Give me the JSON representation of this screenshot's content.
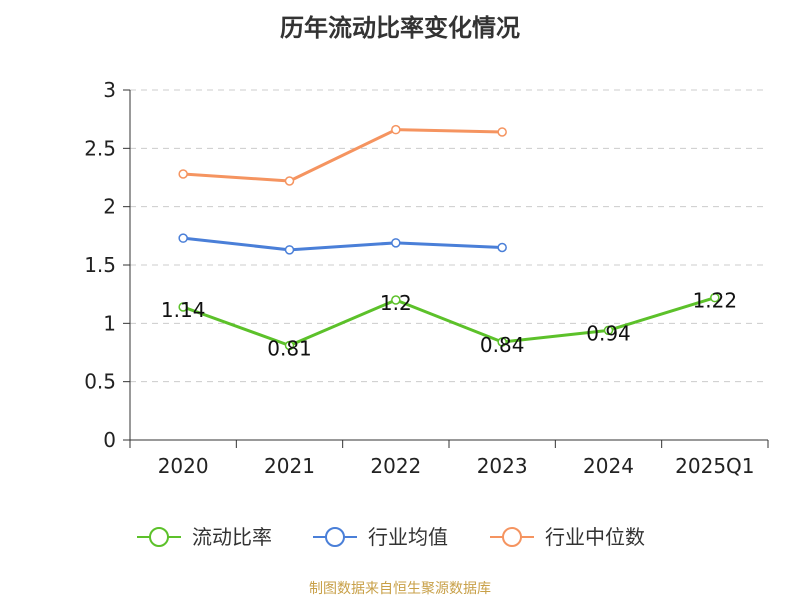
{
  "chart_data": {
    "type": "line",
    "title": "历年流动比率变化情况",
    "categories": [
      "2020",
      "2021",
      "2022",
      "2023",
      "2024",
      "2025Q1"
    ],
    "ylim": [
      0,
      3
    ],
    "yticks": [
      0,
      0.5,
      1,
      1.5,
      2,
      2.5,
      3
    ],
    "grid": true,
    "legend_position": "bottom",
    "series": [
      {
        "name": "流动比率",
        "values": [
          1.14,
          0.81,
          1.2,
          0.84,
          0.94,
          1.22
        ],
        "color": "#5cc12a",
        "labels": [
          "1.14",
          "0.81",
          "1.2",
          "0.84",
          "0.94",
          "1.22"
        ]
      },
      {
        "name": "行业均值",
        "values": [
          1.73,
          1.63,
          1.69,
          1.65,
          null,
          null
        ],
        "color": "#4a7fd8"
      },
      {
        "name": "行业中位数",
        "values": [
          2.28,
          2.22,
          2.66,
          2.64,
          null,
          null
        ],
        "color": "#f59460"
      }
    ],
    "source": "制图数据来自恒生聚源数据库"
  }
}
